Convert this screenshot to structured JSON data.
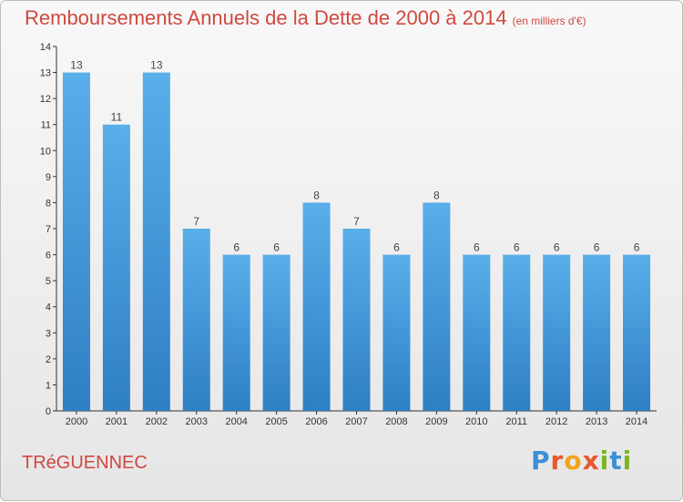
{
  "header": {
    "title": "Remboursements Annuels de la Dette de 2000 à 2014",
    "subtitle": "(en milliers d'€)"
  },
  "footer": {
    "place": "TRéGUENNEC",
    "logo": [
      "P",
      "r",
      "o",
      "x",
      "i",
      "t",
      "i"
    ]
  },
  "colors": {
    "title": "#d0493f",
    "bar_light": "#5aaeea",
    "bar_dark": "#2e7fc4"
  },
  "chart_data": {
    "type": "bar",
    "title": "Remboursements Annuels de la Dette de 2000 à 2014",
    "subtitle": "(en milliers d'€)",
    "xlabel": "",
    "ylabel": "",
    "categories": [
      "2000",
      "2001",
      "2002",
      "2003",
      "2004",
      "2005",
      "2006",
      "2007",
      "2008",
      "2009",
      "2010",
      "2011",
      "2012",
      "2013",
      "2014"
    ],
    "values": [
      13,
      11,
      13,
      7,
      6,
      6,
      8,
      7,
      6,
      8,
      6,
      6,
      6,
      6,
      6
    ],
    "ylim": [
      0,
      14
    ],
    "yticks": [
      0,
      1,
      2,
      3,
      4,
      5,
      6,
      7,
      8,
      9,
      10,
      11,
      12,
      13,
      14
    ],
    "data_labels": true,
    "grid": false
  }
}
